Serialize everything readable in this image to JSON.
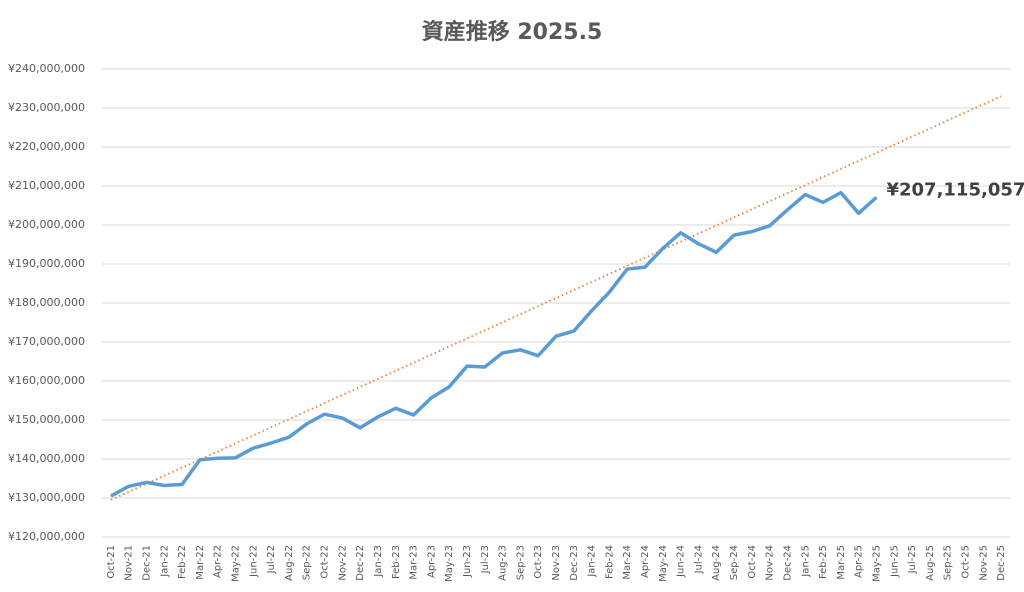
{
  "chart_data": {
    "type": "line",
    "title": "資産推移 2025.5",
    "categories": [
      "Oct-21",
      "Nov-21",
      "Dec-21",
      "Jan-22",
      "Feb-22",
      "Mar-22",
      "Apr-22",
      "May-22",
      "Jun-22",
      "Jul-22",
      "Aug-22",
      "Sep-22",
      "Oct-22",
      "Nov-22",
      "Dec-22",
      "Jan-23",
      "Feb-23",
      "Mar-23",
      "Apr-23",
      "May-23",
      "Jun-23",
      "Jul-23",
      "Aug-23",
      "Sep-23",
      "Oct-23",
      "Nov-23",
      "Dec-23",
      "Jan-24",
      "Feb-24",
      "Mar-24",
      "Apr-24",
      "May-24",
      "Jun-24",
      "Jul-24",
      "Aug-24",
      "Sep-24",
      "Oct-24",
      "Nov-24",
      "Dec-24",
      "Jan-25",
      "Feb-25",
      "Mar-25",
      "Apr-25",
      "May-25",
      "Jun-25",
      "Jul-25",
      "Aug-25",
      "Sep-25",
      "Oct-25",
      "Nov-25",
      "Dec-25"
    ],
    "series": [
      {
        "color": "#5b9bd5",
        "values": [
          130500000,
          133000000,
          134000000,
          133200000,
          133500000,
          139800000,
          140200000,
          140300000,
          142800000,
          144100000,
          145600000,
          149000000,
          151500000,
          150500000,
          148000000,
          150800000,
          153000000,
          151300000,
          155700000,
          158500000,
          163800000,
          163600000,
          167200000,
          168000000,
          166500000,
          171500000,
          172800000,
          178000000,
          182800000,
          188700000,
          189200000,
          194000000,
          198000000,
          195200000,
          193000000,
          197400000,
          198300000,
          199800000,
          203900000,
          207800000,
          205800000,
          208300000,
          203000000,
          207115057,
          null,
          null,
          null,
          null,
          null,
          null,
          null
        ],
        "value_labels": [
          null,
          null,
          null,
          null,
          null,
          null,
          null,
          null,
          null,
          null,
          null,
          null,
          null,
          null,
          null,
          null,
          null,
          null,
          null,
          null,
          null,
          null,
          null,
          null,
          null,
          null,
          null,
          null,
          null,
          null,
          null,
          null,
          null,
          null,
          null,
          null,
          null,
          null,
          null,
          null,
          null,
          null,
          null,
          "¥207,115,057",
          null,
          null,
          null,
          null,
          null,
          null,
          null
        ]
      }
    ],
    "trendline": {
      "color": "#ed7d31",
      "start": 129500000,
      "end": 233000000
    },
    "ylim": [
      120000000,
      240000000
    ],
    "yticks": [
      {
        "value": 120000000,
        "label": "¥120,000,000"
      },
      {
        "value": 130000000,
        "label": "¥130,000,000"
      },
      {
        "value": 140000000,
        "label": "¥140,000,000"
      },
      {
        "value": 150000000,
        "label": "¥150,000,000"
      },
      {
        "value": 160000000,
        "label": "¥160,000,000"
      },
      {
        "value": 170000000,
        "label": "¥170,000,000"
      },
      {
        "value": 180000000,
        "label": "¥180,000,000"
      },
      {
        "value": 190000000,
        "label": "¥190,000,000"
      },
      {
        "value": 200000000,
        "label": "¥200,000,000"
      },
      {
        "value": 210000000,
        "label": "¥210,000,000"
      },
      {
        "value": 220000000,
        "label": "¥220,000,000"
      },
      {
        "value": 230000000,
        "label": "¥230,000,000"
      },
      {
        "value": 240000000,
        "label": "¥240,000,000"
      }
    ],
    "grid": true
  }
}
